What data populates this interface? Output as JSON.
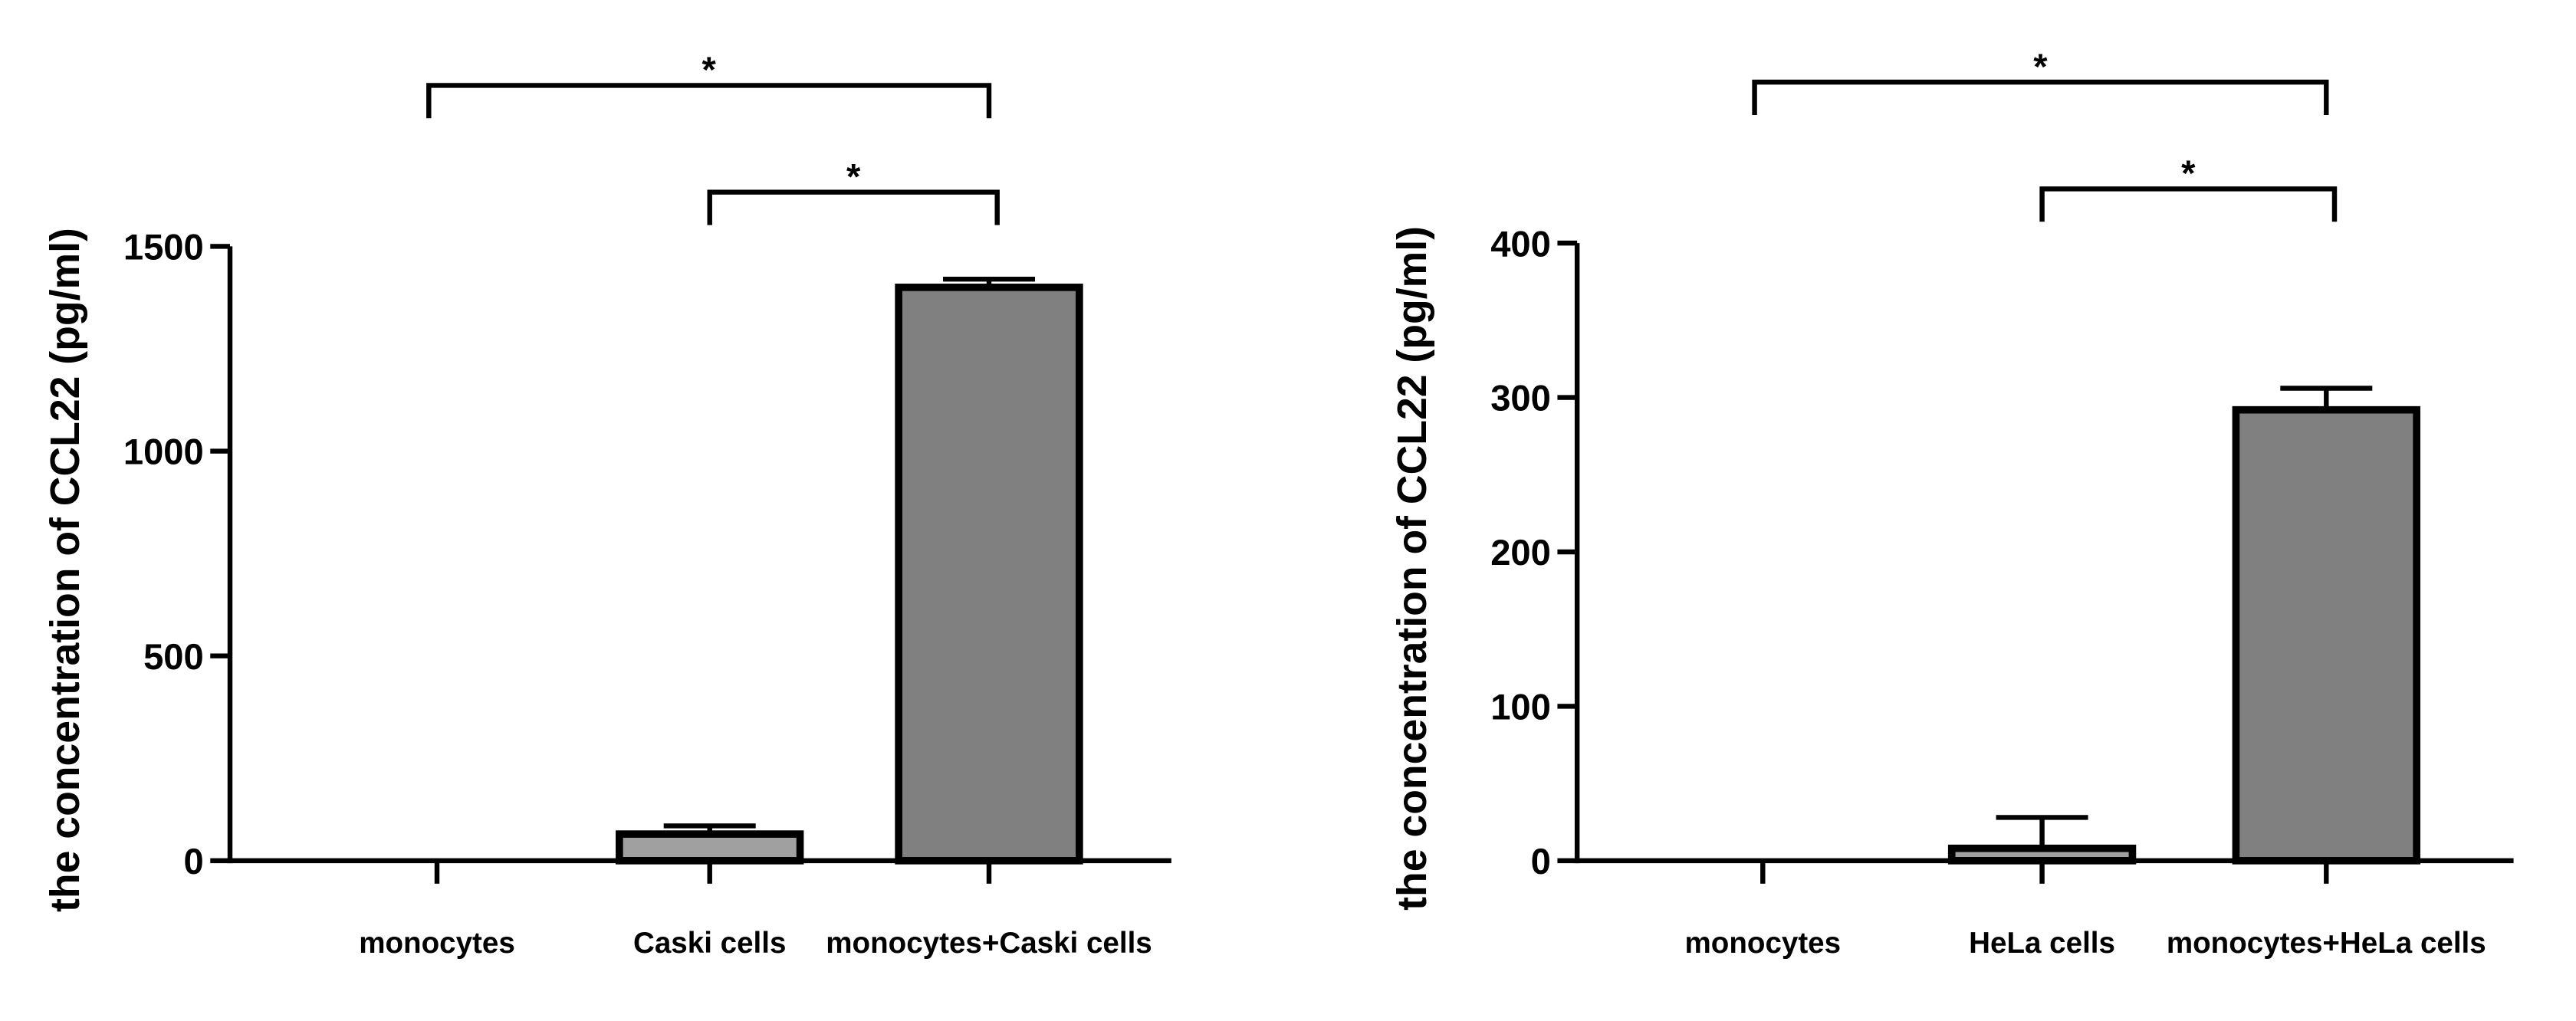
{
  "chart_data": [
    {
      "type": "bar",
      "y_label": "the concentration of CCL22 (pg/ml)",
      "categories": [
        "monocytes",
        "Caski cells",
        "monocytes+Caski cells"
      ],
      "values": [
        0,
        65,
        1400
      ],
      "errors": [
        0,
        20,
        20
      ],
      "colors": [
        "#808080",
        "#a0a0a0",
        "#808080"
      ],
      "ylim": [
        0,
        1500
      ],
      "yticks": [
        0,
        500,
        1000,
        1500
      ],
      "comparisons": [
        {
          "from": 0,
          "to": 2,
          "label": "*"
        },
        {
          "from": 1,
          "to": 2,
          "label": "*"
        }
      ]
    },
    {
      "type": "bar",
      "y_label": "the concentration of CCL22 (pg/ml)",
      "categories": [
        "monocytes",
        "HeLa cells",
        "monocytes+HeLa cells"
      ],
      "values": [
        0,
        8,
        292
      ],
      "errors": [
        0,
        20,
        14
      ],
      "colors": [
        "#808080",
        "#a0a0a0",
        "#808080"
      ],
      "ylim": [
        0,
        400
      ],
      "yticks": [
        0,
        100,
        200,
        300,
        400
      ],
      "comparisons": [
        {
          "from": 0,
          "to": 2,
          "label": "*"
        },
        {
          "from": 1,
          "to": 2,
          "label": "*"
        }
      ]
    }
  ]
}
